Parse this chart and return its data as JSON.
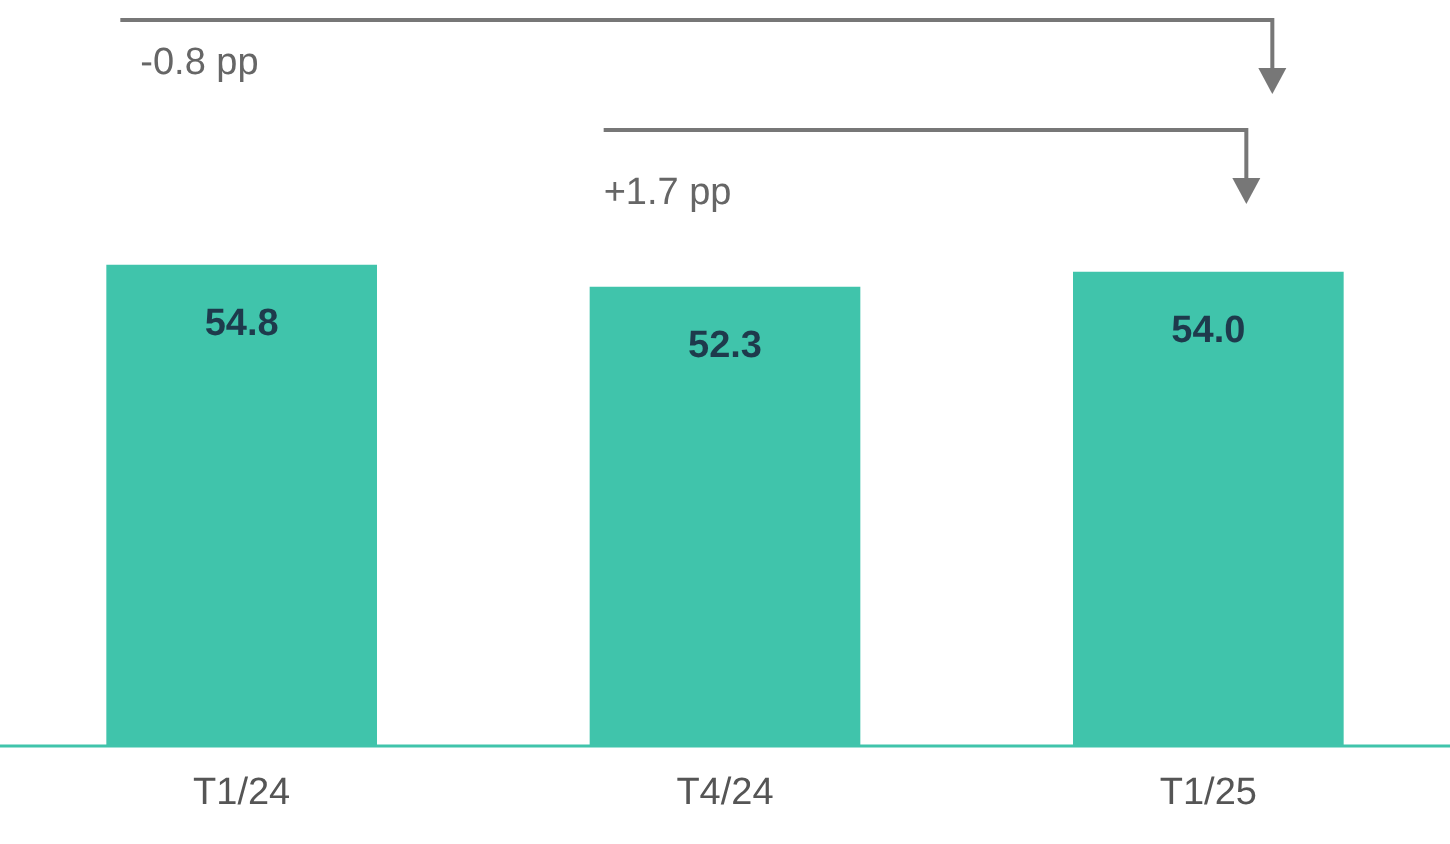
{
  "chart_data": {
    "type": "bar",
    "categories": [
      "T1/24",
      "T4/24",
      "T1/25"
    ],
    "values": [
      54.8,
      52.3,
      54.0
    ],
    "value_labels": [
      "54.8",
      "52.3",
      "54.0"
    ],
    "color": "#40c4ab",
    "tick_labels": "x",
    "annotations": [
      "-0.8 pp",
      "+1.7 pp"
    ]
  }
}
